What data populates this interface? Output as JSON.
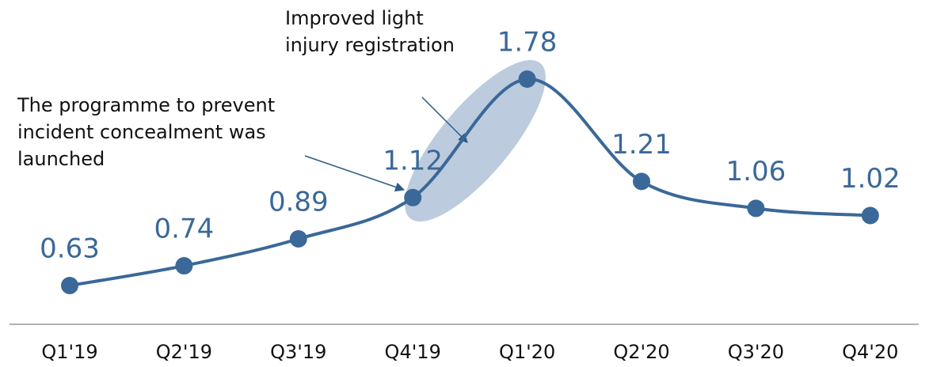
{
  "chart_data": {
    "type": "line",
    "categories": [
      "Q1'19",
      "Q2'19",
      "Q3'19",
      "Q4'19",
      "Q1'20",
      "Q2'20",
      "Q3'20",
      "Q4'20"
    ],
    "series": [
      {
        "color": "#3a6898",
        "values": [
          0.63,
          0.74,
          0.89,
          1.12,
          1.78,
          1.21,
          1.06,
          1.02
        ]
      }
    ],
    "annotations": [
      "Improved light injury registration",
      "The programme to prevent incident concealment was launched"
    ]
  }
}
